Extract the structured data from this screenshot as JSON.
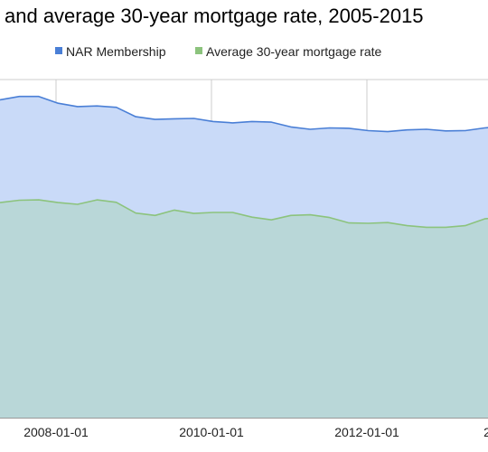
{
  "chart_data": {
    "type": "area",
    "title": "and average 30-year mortgage rate, 2005-2015",
    "legend_position": "top",
    "grid": true,
    "colors": {
      "nar_line": "#4a7fd6",
      "nar_fill": "#c9daf8",
      "mortgage_line": "#8cc37d",
      "mortgage_fill": "#b6d6d2",
      "grid": "#cccccc"
    },
    "x_ticks": [
      "2008-01-01",
      "2010-01-01",
      "2012-01-01",
      "2"
    ],
    "x": [
      "2007-01-01",
      "2007-04-01",
      "2007-07-01",
      "2007-10-01",
      "2008-01-01",
      "2008-04-01",
      "2008-07-01",
      "2008-10-01",
      "2009-01-01",
      "2009-04-01",
      "2009-07-01",
      "2009-10-01",
      "2010-01-01",
      "2010-04-01",
      "2010-07-01",
      "2010-10-01",
      "2011-01-01",
      "2011-04-01",
      "2011-07-01",
      "2011-10-01",
      "2012-01-01",
      "2012-04-01",
      "2012-07-01",
      "2012-10-01",
      "2013-01-01",
      "2013-04-01",
      "2013-07-01"
    ],
    "series": [
      {
        "name": "NAR Membership",
        "values": [
          0.94,
          0.95,
          0.95,
          0.93,
          0.92,
          0.922,
          0.918,
          0.89,
          0.882,
          0.884,
          0.885,
          0.876,
          0.872,
          0.876,
          0.874,
          0.86,
          0.853,
          0.857,
          0.856,
          0.849,
          0.846,
          0.851,
          0.853,
          0.848,
          0.849,
          0.857,
          0.862
        ]
      },
      {
        "name": "Average 30-year mortgage rate",
        "values": [
          0.636,
          0.643,
          0.644,
          0.636,
          0.631,
          0.644,
          0.637,
          0.605,
          0.598,
          0.614,
          0.604,
          0.607,
          0.607,
          0.593,
          0.585,
          0.598,
          0.6,
          0.592,
          0.576,
          0.575,
          0.577,
          0.568,
          0.563,
          0.563,
          0.568,
          0.588,
          0.595
        ]
      }
    ]
  }
}
